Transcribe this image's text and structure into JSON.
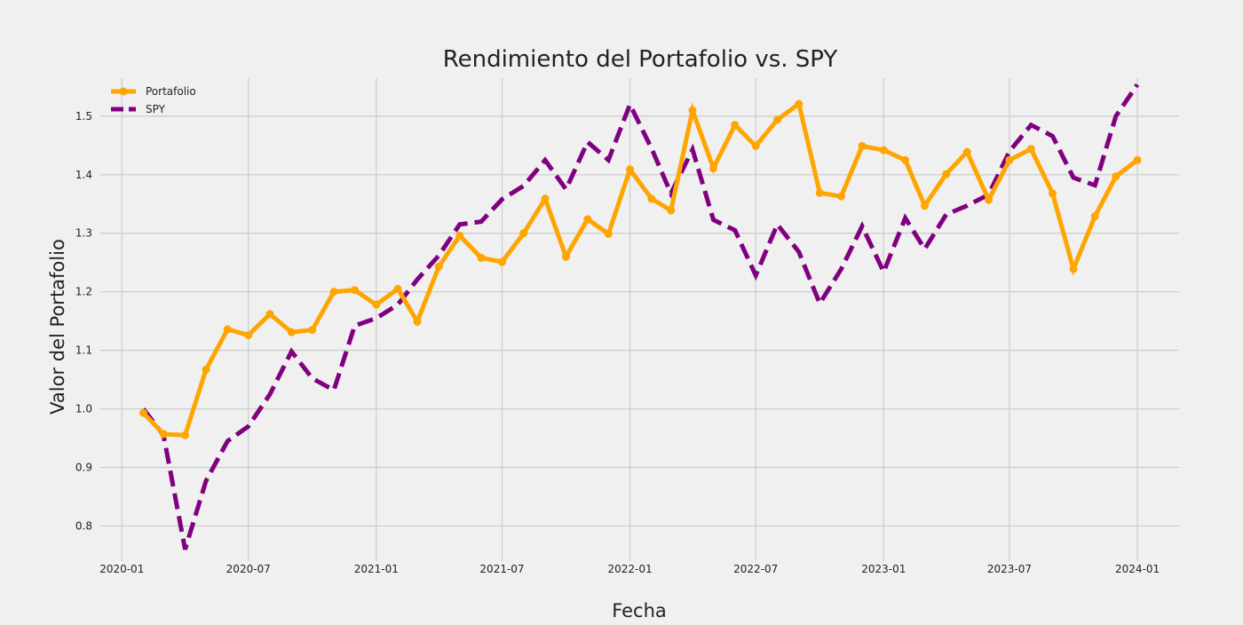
{
  "chart_data": {
    "type": "line",
    "title": "Rendimiento del Portafolio vs. SPY",
    "xlabel": "Fecha",
    "ylabel": "Valor del Portafolio",
    "x_ticks": [
      "2020-01",
      "2020-07",
      "2021-01",
      "2021-07",
      "2022-01",
      "2022-07",
      "2023-01",
      "2023-07",
      "2024-01"
    ],
    "y_ticks": [
      0.8,
      0.9,
      1.0,
      1.1,
      1.2,
      1.3,
      1.4,
      1.5
    ],
    "ylim": [
      0.74,
      1.565
    ],
    "xlim": [
      "2019-12-01",
      "2024-03-01"
    ],
    "grid": true,
    "legend_position": "top-left",
    "x": [
      "2020-02-01",
      "2020-03-01",
      "2020-04-01",
      "2020-05-01",
      "2020-06-01",
      "2020-07-01",
      "2020-08-01",
      "2020-09-01",
      "2020-10-01",
      "2020-11-01",
      "2020-12-01",
      "2021-01-01",
      "2021-02-01",
      "2021-03-01",
      "2021-04-01",
      "2021-05-01",
      "2021-06-01",
      "2021-07-01",
      "2021-08-01",
      "2021-09-01",
      "2021-10-01",
      "2021-11-01",
      "2021-12-01",
      "2022-01-01",
      "2022-02-01",
      "2022-03-01",
      "2022-04-01",
      "2022-05-01",
      "2022-06-01",
      "2022-07-01",
      "2022-08-01",
      "2022-09-01",
      "2022-10-01",
      "2022-11-01",
      "2022-12-01",
      "2023-01-01",
      "2023-02-01",
      "2023-03-01",
      "2023-04-01",
      "2023-05-01",
      "2023-06-01",
      "2023-07-01",
      "2023-08-01",
      "2023-09-01",
      "2023-10-01",
      "2023-11-01",
      "2023-12-01",
      "2024-01-01"
    ],
    "series": [
      {
        "name": "Portafolio",
        "color": "#FFA500",
        "style": "solid",
        "markers": true,
        "values": [
          0.993,
          0.957,
          0.955,
          1.067,
          1.136,
          1.126,
          1.162,
          1.131,
          1.135,
          1.2,
          1.203,
          1.178,
          1.205,
          1.149,
          1.243,
          1.296,
          1.258,
          1.251,
          1.3,
          1.359,
          1.26,
          1.324,
          1.299,
          1.409,
          1.359,
          1.339,
          1.51,
          1.411,
          1.485,
          1.449,
          1.494,
          1.521,
          1.369,
          1.363,
          1.449,
          1.442,
          1.425,
          1.347,
          1.401,
          1.439,
          1.357,
          1.425,
          1.444,
          1.368,
          1.239,
          1.329,
          1.397,
          1.425
        ]
      },
      {
        "name": "SPY",
        "color": "#800080",
        "style": "dashed",
        "markers": false,
        "values": [
          1.0,
          0.955,
          0.76,
          0.877,
          0.945,
          0.97,
          1.025,
          1.098,
          1.052,
          1.032,
          1.142,
          1.155,
          1.178,
          1.221,
          1.262,
          1.315,
          1.32,
          1.358,
          1.381,
          1.425,
          1.375,
          1.456,
          1.425,
          1.52,
          1.445,
          1.368,
          1.443,
          1.323,
          1.305,
          1.228,
          1.315,
          1.268,
          1.18,
          1.239,
          1.312,
          1.234,
          1.326,
          1.273,
          1.332,
          1.347,
          1.366,
          1.44,
          1.485,
          1.466,
          1.395,
          1.382,
          1.5,
          1.554
        ]
      }
    ]
  }
}
